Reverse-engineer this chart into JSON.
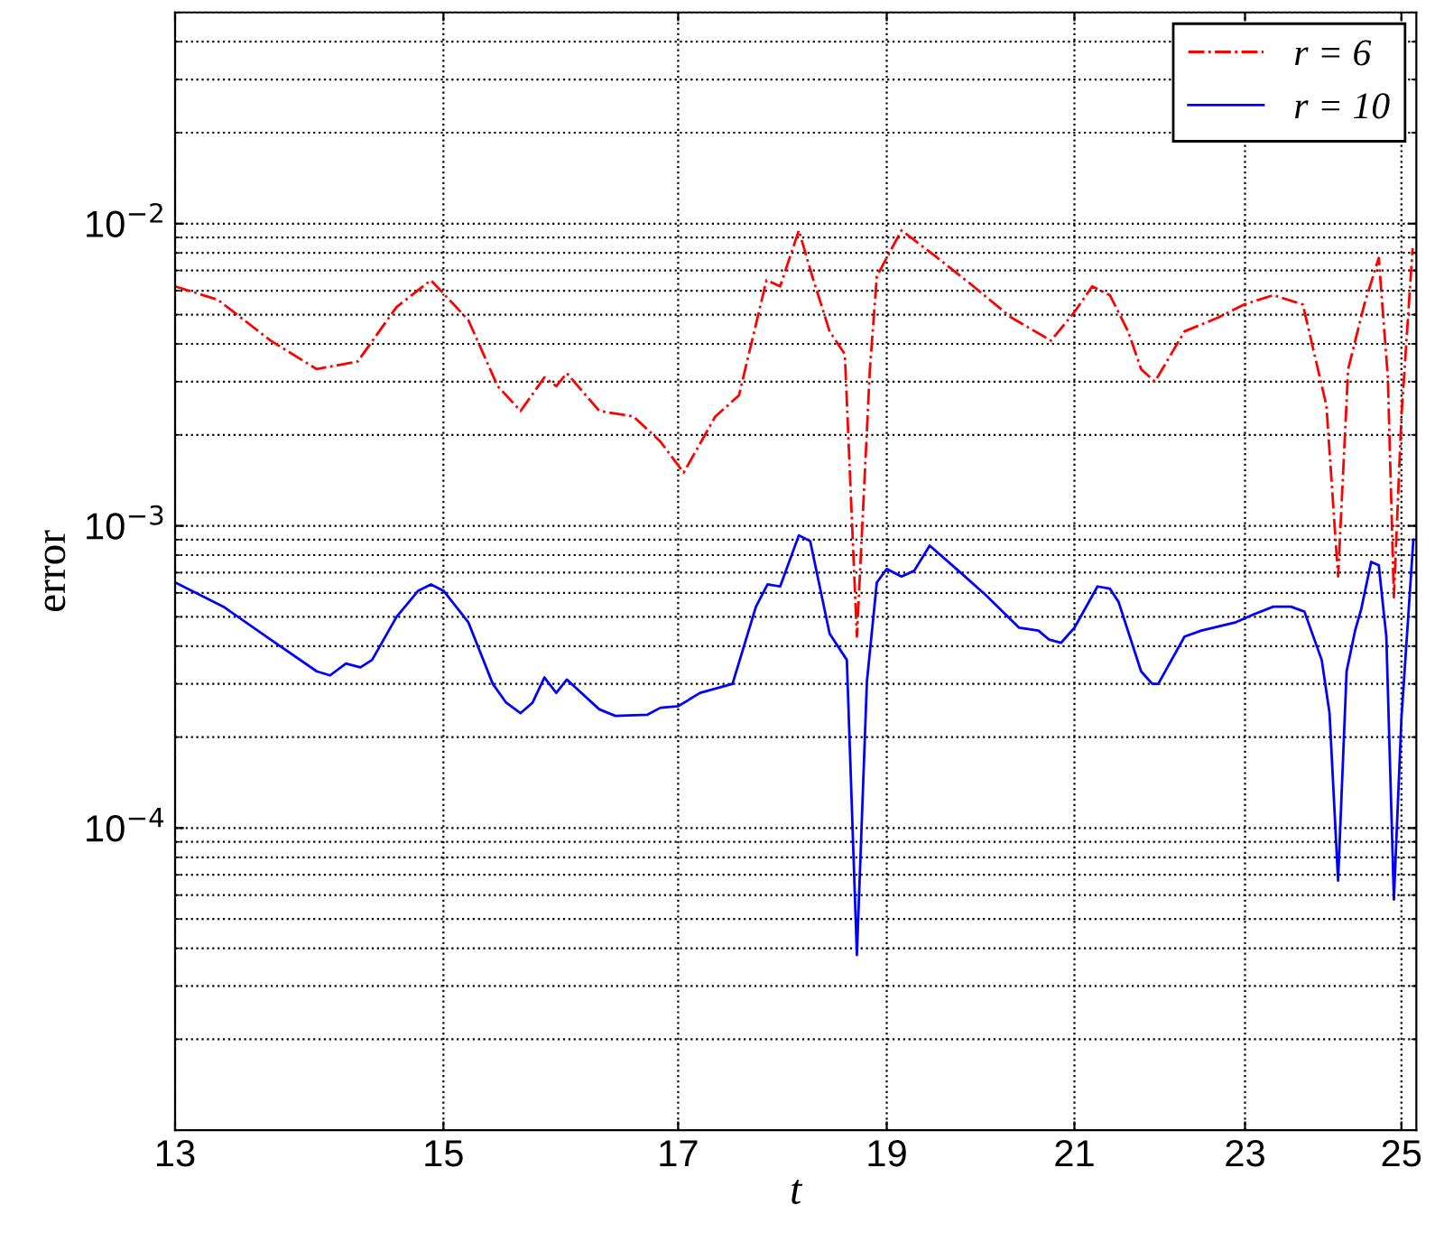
{
  "chart_data": {
    "type": "line",
    "xlabel": "t",
    "ylabel": "error",
    "log": "xy",
    "grid": true,
    "legend": "top right",
    "xlim": [
      13,
      25.2
    ],
    "xticks": [
      13,
      15,
      17,
      19,
      21,
      23,
      25
    ],
    "ylim": [
      1e-05,
      0.05
    ],
    "yticks": [
      {
        "value": 0.0001,
        "label": "10$^{−4}$"
      },
      {
        "value": 0.001,
        "label": "10$^{−3}$"
      },
      {
        "value": 0.01,
        "label": "10$^{−2}$"
      }
    ],
    "series": [
      {
        "name": "r = 6",
        "color": "#ff0000",
        "line_style": "dashdot",
        "x": [
          13,
          13.3,
          13.68,
          14.02,
          14.33,
          14.63,
          14.9,
          15.2,
          15.44,
          15.63,
          15.83,
          15.93,
          16.02,
          16.3,
          16.6,
          16.84,
          17.05,
          17.34,
          17.56,
          17.82,
          17.95,
          18.13,
          18.26,
          18.43,
          18.58,
          18.7,
          18.83,
          18.9,
          19.15,
          19.5,
          19.9,
          20.3,
          20.74,
          21,
          21.2,
          21.4,
          21.61,
          21.76,
          21.92,
          22.27,
          22.68,
          22.99,
          23.35,
          23.72,
          24.02,
          24.17,
          24.3,
          24.51,
          24.7,
          24.82,
          24.9,
          25.0,
          25.15
        ],
        "values": [
          0.0062,
          0.0056,
          0.0041,
          0.0033,
          0.0035,
          0.0053,
          0.0065,
          0.0048,
          0.0029,
          0.0024,
          0.0031,
          0.0029,
          0.0032,
          0.0024,
          0.0023,
          0.0019,
          0.0015,
          0.0023,
          0.0027,
          0.0065,
          0.0062,
          0.0095,
          0.0067,
          0.0044,
          0.0037,
          0.00043,
          0.0033,
          0.0067,
          0.0095,
          0.0078,
          0.0062,
          0.0049,
          0.0041,
          0.0051,
          0.0062,
          0.0058,
          0.0044,
          0.0033,
          0.003,
          0.0044,
          0.0049,
          0.0054,
          0.0058,
          0.0054,
          0.0025,
          0.00068,
          0.0033,
          0.0054,
          0.0077,
          0.0031,
          0.00058,
          0.0023,
          0.0083
        ]
      },
      {
        "name": "r = 10",
        "color": "#0000ff",
        "line_style": "solid",
        "x": [
          13,
          13.34,
          13.68,
          14.02,
          14.12,
          14.24,
          14.35,
          14.44,
          14.63,
          14.8,
          14.9,
          15.0,
          15.2,
          15.4,
          15.51,
          15.63,
          15.73,
          15.83,
          15.93,
          16.02,
          16.3,
          16.44,
          16.72,
          16.84,
          17.0,
          17.2,
          17.5,
          17.72,
          17.83,
          17.95,
          18.13,
          18.24,
          18.43,
          18.6,
          18.7,
          18.8,
          18.9,
          19.0,
          19.15,
          19.28,
          19.44,
          19.72,
          20.03,
          20.39,
          20.6,
          20.72,
          20.85,
          21.0,
          21.26,
          21.4,
          21.5,
          21.76,
          21.89,
          21.96,
          22.27,
          22.47,
          22.89,
          23.11,
          23.35,
          23.57,
          23.74,
          23.96,
          24.06,
          24.17,
          24.28,
          24.39,
          24.47,
          24.6,
          24.7,
          24.8,
          24.9,
          25.0,
          25.16
        ],
        "values": [
          0.00065,
          0.00054,
          0.00042,
          0.00033,
          0.00032,
          0.00035,
          0.00034,
          0.00036,
          0.0005,
          0.00061,
          0.00064,
          0.00061,
          0.00048,
          0.0003,
          0.00026,
          0.00024,
          0.00026,
          0.000315,
          0.00028,
          0.00031,
          0.000247,
          0.000235,
          0.000237,
          0.00025,
          0.000253,
          0.00028,
          0.0003,
          0.00054,
          0.00064,
          0.00063,
          0.00093,
          0.00089,
          0.00044,
          0.00036,
          3.8e-05,
          0.000305,
          0.00065,
          0.00072,
          0.00068,
          0.00071,
          0.00086,
          0.00072,
          0.00059,
          0.00046,
          0.00045,
          0.00042,
          0.00041,
          0.00046,
          0.00063,
          0.00062,
          0.00056,
          0.00033,
          0.0003,
          0.0003,
          0.00043,
          0.00045,
          0.00048,
          0.00051,
          0.00054,
          0.00054,
          0.00052,
          0.00036,
          0.00024,
          6.7e-05,
          0.00033,
          0.00045,
          0.00053,
          0.00076,
          0.00074,
          0.00043,
          5.8e-05,
          0.00023,
          0.0009
        ]
      }
    ]
  }
}
